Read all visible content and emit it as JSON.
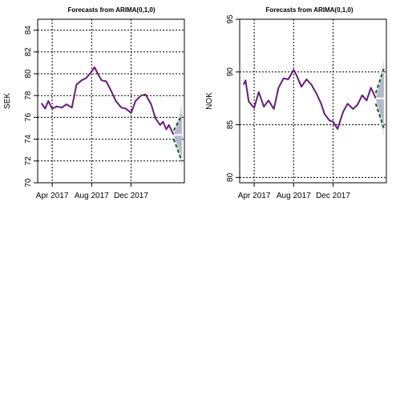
{
  "chart_data": [
    {
      "type": "line",
      "title": "Forecasts from ARIMA(0,1,0)",
      "ylabel": "SEK",
      "xlabel": "",
      "ylim": [
        70,
        85
      ],
      "yticks": [
        70,
        72,
        74,
        76,
        78,
        80,
        82,
        84
      ],
      "xlim": [
        "2017-02-15",
        "2018-05-15"
      ],
      "xticks": [
        {
          "date": "2017-04-01",
          "label": "Apr 2017"
        },
        {
          "date": "2017-08-01",
          "label": "Aug 2017"
        },
        {
          "date": "2017-12-01",
          "label": "Dec 2017"
        }
      ],
      "grid": true,
      "series_color": "#6a1b7a",
      "forecast_line_color": "#ffffff",
      "band80_color": "#b3b8d0",
      "band95_color": "#dcdde6",
      "bound_line_color": "#006400",
      "series": {
        "x": [
          "2017-02-27",
          "2017-03-10",
          "2017-03-20",
          "2017-04-01",
          "2017-04-15",
          "2017-05-01",
          "2017-05-15",
          "2017-06-01",
          "2017-06-15",
          "2017-07-01",
          "2017-07-15",
          "2017-08-01",
          "2017-08-10",
          "2017-08-20",
          "2017-09-01",
          "2017-09-15",
          "2017-10-01",
          "2017-10-15",
          "2017-11-01",
          "2017-11-15",
          "2017-12-01",
          "2017-12-15",
          "2018-01-01",
          "2018-01-15",
          "2018-02-01",
          "2018-02-15",
          "2018-03-01",
          "2018-03-10",
          "2018-03-20",
          "2018-03-28",
          "2018-04-05",
          "2018-04-12"
        ],
        "y": [
          77.3,
          76.8,
          77.5,
          76.8,
          77.0,
          76.9,
          77.2,
          76.9,
          79.0,
          79.4,
          79.6,
          80.2,
          80.6,
          80.0,
          79.4,
          79.3,
          78.4,
          77.5,
          76.9,
          76.8,
          76.4,
          77.5,
          78.0,
          78.1,
          77.2,
          75.9,
          75.3,
          75.6,
          74.9,
          75.3,
          74.8,
          74.4
        ]
      },
      "forecast": {
        "x": [
          "2018-04-12",
          "2018-05-07"
        ],
        "mean": [
          74.4,
          74.4
        ],
        "lo80": [
          74.4,
          72.5
        ],
        "hi80": [
          74.4,
          76.3
        ],
        "lo95": [
          74.4,
          71.5
        ],
        "hi95": [
          74.4,
          77.3
        ],
        "bound_lo": [
          74.0,
          72.0
        ],
        "bound_hi": [
          74.8,
          76.2
        ]
      }
    },
    {
      "type": "line",
      "title": "Forecasts from ARIMA(0,1,0)",
      "ylabel": "NOK",
      "xlabel": "",
      "ylim": [
        79.5,
        95
      ],
      "yticks": [
        80,
        85,
        90,
        95
      ],
      "xlim": [
        "2017-02-15",
        "2018-05-15"
      ],
      "xticks": [
        {
          "date": "2017-04-01",
          "label": "Apr 2017"
        },
        {
          "date": "2017-08-01",
          "label": "Aug 2017"
        },
        {
          "date": "2017-12-01",
          "label": "Dec 2017"
        }
      ],
      "grid": true,
      "series_color": "#6a1b7a",
      "forecast_line_color": "#ffffff",
      "band80_color": "#b3b8d0",
      "band95_color": "#dcdde6",
      "bound_line_color": "#006400",
      "series": {
        "x": [
          "2017-02-27",
          "2017-03-05",
          "2017-03-15",
          "2017-04-01",
          "2017-04-15",
          "2017-05-01",
          "2017-05-15",
          "2017-06-01",
          "2017-06-15",
          "2017-07-01",
          "2017-07-15",
          "2017-08-01",
          "2017-08-10",
          "2017-08-25",
          "2017-09-10",
          "2017-09-25",
          "2017-10-10",
          "2017-10-25",
          "2017-11-05",
          "2017-11-20",
          "2017-12-01",
          "2017-12-15",
          "2018-01-01",
          "2018-01-15",
          "2018-02-01",
          "2018-02-15",
          "2018-03-01",
          "2018-03-15",
          "2018-03-28",
          "2018-04-05",
          "2018-04-12"
        ],
        "y": [
          88.8,
          89.2,
          87.2,
          86.6,
          88.1,
          86.7,
          87.3,
          86.5,
          88.5,
          89.4,
          89.3,
          90.2,
          89.7,
          88.6,
          89.3,
          88.8,
          88.0,
          87.0,
          86.0,
          85.4,
          85.3,
          84.6,
          86.2,
          87.0,
          86.5,
          86.9,
          87.8,
          87.3,
          88.5,
          88.0,
          87.5
        ]
      },
      "forecast": {
        "x": [
          "2018-04-12",
          "2018-05-07"
        ],
        "mean": [
          87.5,
          87.5
        ],
        "lo80": [
          87.5,
          85.0
        ],
        "hi80": [
          87.5,
          90.0
        ],
        "lo95": [
          87.5,
          83.8
        ],
        "hi95": [
          87.5,
          91.2
        ],
        "bound_lo": [
          87.0,
          84.7
        ],
        "bound_hi": [
          88.0,
          90.3
        ]
      }
    }
  ]
}
